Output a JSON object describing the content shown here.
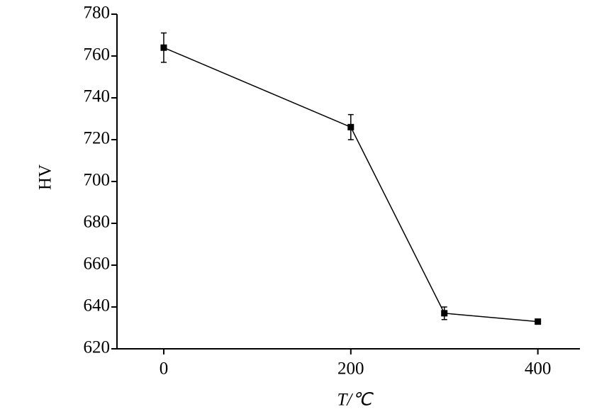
{
  "chart_data": {
    "type": "line",
    "x_label": "T/℃",
    "y_label": "HV",
    "x": [
      0,
      200,
      300,
      400
    ],
    "series": [
      {
        "color": "#000000",
        "values": [
          764,
          726,
          637,
          633
        ],
        "errors": [
          7,
          6,
          3,
          0
        ]
      }
    ],
    "xlim": [
      -50,
      445
    ],
    "xticks": [
      0,
      200,
      400
    ],
    "ylim": [
      620,
      780
    ],
    "yticks": [
      620,
      640,
      660,
      680,
      700,
      720,
      740,
      760,
      780
    ]
  }
}
